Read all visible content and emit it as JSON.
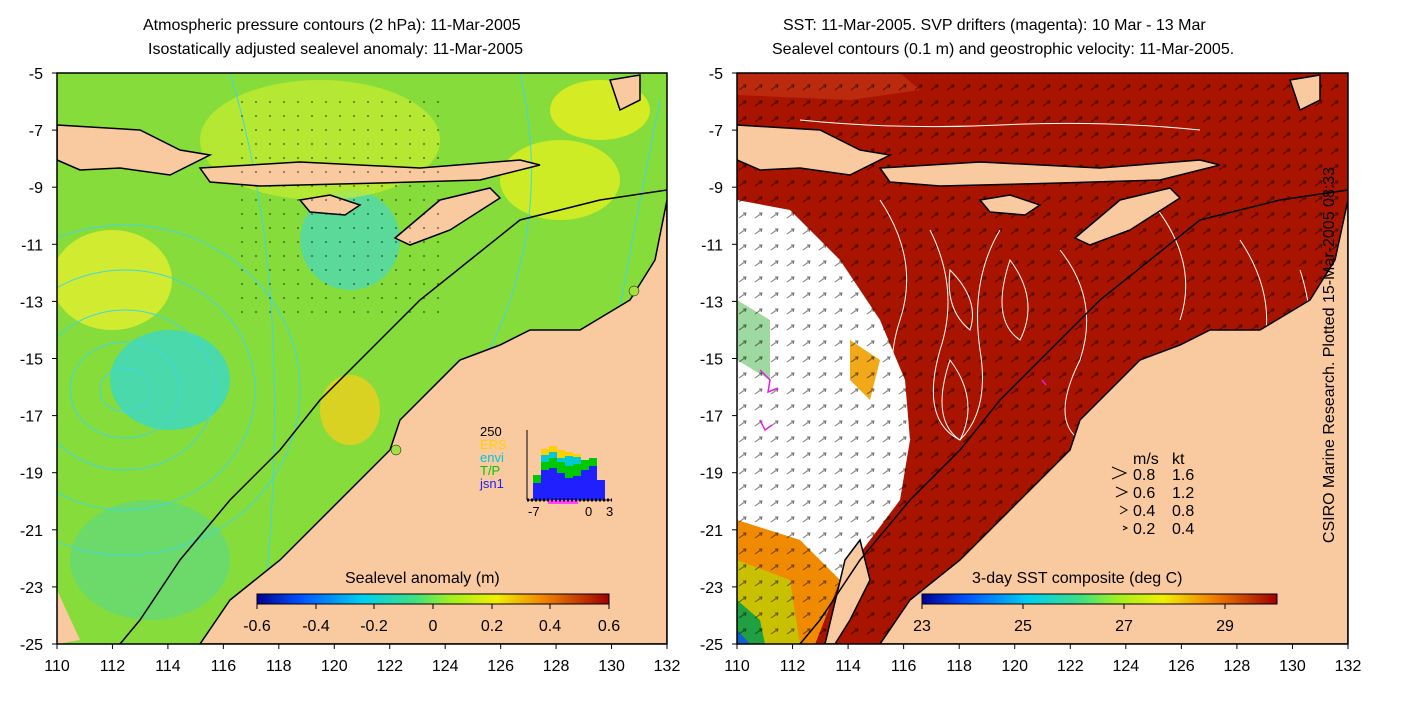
{
  "left_panel": {
    "title_line1": "Atmospheric pressure contours (2 hPa): 11-Mar-2005",
    "title_line2": "Isostatically adjusted sealevel anomaly: 11-Mar-2005",
    "colorbar_label": "Sealevel anomaly (m)",
    "colorbar_ticks": [
      "-0.6",
      "-0.4",
      "-0.2",
      "0",
      "0.2",
      "0.4",
      "0.6"
    ],
    "inset": {
      "top_tick": "250",
      "legend": [
        {
          "label": "ERS",
          "color": "#ffd000"
        },
        {
          "label": "envi",
          "color": "#00c8d8"
        },
        {
          "label": "T/P",
          "color": "#00c800"
        },
        {
          "label": "jsn1",
          "color": "#2020ff"
        }
      ],
      "x_ticks": [
        "-7",
        "0",
        "3"
      ]
    }
  },
  "right_panel": {
    "title_line1": "SST: 11-Mar-2005. SVP drifters (magenta): 10 Mar - 13 Mar",
    "title_line2": "Sealevel contours (0.1 m) and geostrophic velocity: 11-Mar-2005.",
    "colorbar_label": "3-day SST composite (deg C)",
    "colorbar_ticks": [
      "23",
      "25",
      "27",
      "29"
    ],
    "velocity_key": {
      "header_ms": "m/s",
      "header_kt": "kt",
      "rows": [
        {
          "ms": "0.8",
          "kt": "1.6"
        },
        {
          "ms": "0.6",
          "kt": "1.2"
        },
        {
          "ms": "0.4",
          "kt": "0.8"
        },
        {
          "ms": "0.2",
          "kt": "0.4"
        }
      ]
    }
  },
  "axes": {
    "x_ticks": [
      "110",
      "112",
      "114",
      "116",
      "118",
      "120",
      "122",
      "124",
      "126",
      "128",
      "130",
      "132"
    ],
    "y_ticks": [
      "-5",
      "-7",
      "-9",
      "-11",
      "-13",
      "-15",
      "-17",
      "-19",
      "-21",
      "-23",
      "-25"
    ],
    "lon_range": [
      110,
      132
    ],
    "lat_range": [
      -25,
      -5
    ]
  },
  "credit": "CSIRO Marine Research. Plotted 15-Mar-2005 08:33",
  "colors": {
    "land": "#f9c9a0",
    "sla_background": "#86dc3a",
    "sst_background": "#a81400",
    "contour_left": "#40d8e0",
    "contour_right": "#ffffff"
  }
}
